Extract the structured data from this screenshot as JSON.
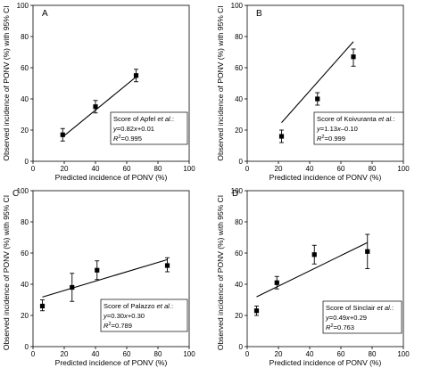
{
  "chart_data": [
    {
      "type": "scatter",
      "panel_label": "A",
      "xlabel": "Predicted incidence of PONV (%)",
      "ylabel": "Observed incidence of PONV (%) with 95% CI",
      "xlim": [
        0,
        100
      ],
      "ylim": [
        0,
        100
      ],
      "xticks": [
        "0",
        "20",
        "40",
        "60",
        "80",
        "100"
      ],
      "yticks": [
        "0",
        "20",
        "40",
        "60",
        "80",
        "100"
      ],
      "points": [
        {
          "x": 19,
          "y": 17,
          "ci_low": 13,
          "ci_high": 21
        },
        {
          "x": 40,
          "y": 35,
          "ci_low": 31,
          "ci_high": 39
        },
        {
          "x": 66,
          "y": 55,
          "ci_low": 51,
          "ci_high": 59
        }
      ],
      "fit": {
        "slope": 0.82,
        "intercept": 0.01,
        "x_range": [
          19,
          66
        ]
      },
      "annotation": {
        "title_prefix": "Score of Apfel ",
        "title_etal": "et al.",
        "title_suffix": ":",
        "eq_y": "y",
        "eq_body": "=0.82",
        "eq_x": "x",
        "eq_tail": "+0.01",
        "r2_r": "R",
        "r2_sup": "2",
        "r2_value": "=0.995"
      }
    },
    {
      "type": "scatter",
      "panel_label": "B",
      "xlabel": "Predicted incidence of PONV (%)",
      "ylabel": "Observed incidence of PONV (%) with 95% CI",
      "xlim": [
        0,
        100
      ],
      "ylim": [
        0,
        100
      ],
      "xticks": [
        "0",
        "20",
        "40",
        "60",
        "80",
        "100"
      ],
      "yticks": [
        "0",
        "20",
        "40",
        "60",
        "80",
        "100"
      ],
      "points": [
        {
          "x": 22,
          "y": 16,
          "ci_low": 12,
          "ci_high": 20
        },
        {
          "x": 45,
          "y": 40,
          "ci_low": 36,
          "ci_high": 44
        },
        {
          "x": 68,
          "y": 67,
          "ci_low": 61,
          "ci_high": 72
        }
      ],
      "fit": {
        "slope": 1.13,
        "intercept": -0.1,
        "x_range": [
          22,
          68
        ]
      },
      "annotation": {
        "title_prefix": "Score of Koivuranta ",
        "title_etal": "et al.",
        "title_suffix": ":",
        "eq_y": "y",
        "eq_body": "=1.13",
        "eq_x": "x",
        "eq_tail": "–0.10",
        "r2_r": "R",
        "r2_sup": "2",
        "r2_value": "=0.999"
      }
    },
    {
      "type": "scatter",
      "panel_label": "C",
      "xlabel": "Predicted incidence of PONV (%)",
      "ylabel": "Observed incidence of PONV (%) with 95% CI",
      "xlim": [
        0,
        100
      ],
      "ylim": [
        0,
        100
      ],
      "xticks": [
        "0",
        "20",
        "40",
        "60",
        "80",
        "100"
      ],
      "yticks": [
        "0",
        "20",
        "40",
        "60",
        "80",
        "100"
      ],
      "points": [
        {
          "x": 6,
          "y": 26,
          "ci_low": 23,
          "ci_high": 30
        },
        {
          "x": 25,
          "y": 38,
          "ci_low": 29,
          "ci_high": 47
        },
        {
          "x": 41,
          "y": 49,
          "ci_low": 43,
          "ci_high": 55
        },
        {
          "x": 86,
          "y": 52,
          "ci_low": 48,
          "ci_high": 57
        }
      ],
      "fit": {
        "slope": 0.3,
        "intercept": 30,
        "x_range": [
          6,
          86
        ]
      },
      "annotation": {
        "title_prefix": "Score of Palazzo ",
        "title_etal": "et al.",
        "title_suffix": ":",
        "eq_y": "y",
        "eq_body": "=0.30",
        "eq_x": "x",
        "eq_tail": "+0.30",
        "r2_r": "R",
        "r2_sup": "2",
        "r2_value": "=0.789"
      }
    },
    {
      "type": "scatter",
      "panel_label": "D",
      "xlabel": "Predicted incidence of PONV (%)",
      "ylabel": "Observed incidence of PONV (%) with 95% CI",
      "xlim": [
        0,
        100
      ],
      "ylim": [
        0,
        100
      ],
      "xticks": [
        "0",
        "20",
        "40",
        "60",
        "80",
        "100"
      ],
      "yticks": [
        "0",
        "20",
        "40",
        "60",
        "80",
        "100"
      ],
      "points": [
        {
          "x": 6,
          "y": 23,
          "ci_low": 20,
          "ci_high": 26
        },
        {
          "x": 19,
          "y": 41,
          "ci_low": 37,
          "ci_high": 45
        },
        {
          "x": 43,
          "y": 59,
          "ci_low": 53,
          "ci_high": 65
        },
        {
          "x": 77,
          "y": 61,
          "ci_low": 50,
          "ci_high": 72
        }
      ],
      "fit": {
        "slope": 0.49,
        "intercept": 29,
        "x_range": [
          6,
          77
        ]
      },
      "annotation": {
        "title_prefix": "Score of Sinclair ",
        "title_etal": "et al.",
        "title_suffix": ":",
        "eq_y": "y",
        "eq_body": "=0.49",
        "eq_x": "x",
        "eq_tail": "+0.29",
        "r2_r": "R",
        "r2_sup": "2",
        "r2_value": "=0.763"
      }
    }
  ]
}
